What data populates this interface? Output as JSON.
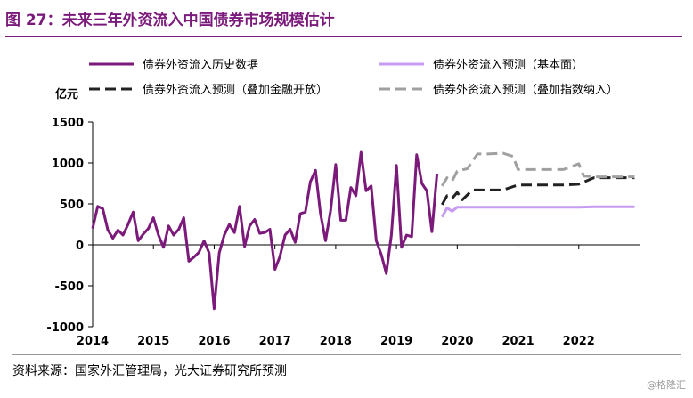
{
  "header": {
    "title": "图 27：未来三年外资流入中国债券市场规模估计"
  },
  "footer": {
    "source": "资料来源：国家外汇管理局，光大证券研究所预测",
    "watermark": "@格隆汇"
  },
  "chart_data": {
    "type": "line",
    "title": "图 27：未来三年外资流入中国债券市场规模估计",
    "ylabel": "亿元",
    "xlabel": "",
    "ylim": [
      -1000,
      1500
    ],
    "xlim": [
      2014,
      2023
    ],
    "yticks": [
      1500,
      1000,
      500,
      0,
      -500,
      -1000
    ],
    "ytick_labels": [
      "1500",
      "1000",
      "500",
      "0",
      "-500",
      "-1000"
    ],
    "xticks": [
      2014,
      2015,
      2016,
      2017,
      2018,
      2019,
      2020,
      2021,
      2022
    ],
    "xtick_labels": [
      "2014",
      "2015",
      "2016",
      "2017",
      "2018",
      "2019",
      "2020",
      "2021",
      "2022"
    ],
    "grid": false,
    "legend_position": "top",
    "series": [
      {
        "name": "债券外资流入历史数据",
        "color": "#7b1a7b",
        "style": "solid",
        "x": [
          2014.0,
          2014.083,
          2014.167,
          2014.25,
          2014.333,
          2014.417,
          2014.5,
          2014.583,
          2014.667,
          2014.75,
          2014.833,
          2014.917,
          2015.0,
          2015.083,
          2015.167,
          2015.25,
          2015.333,
          2015.417,
          2015.5,
          2015.583,
          2015.667,
          2015.75,
          2015.833,
          2015.917,
          2016.0,
          2016.083,
          2016.167,
          2016.25,
          2016.333,
          2016.417,
          2016.5,
          2016.583,
          2016.667,
          2016.75,
          2016.833,
          2016.917,
          2017.0,
          2017.083,
          2017.167,
          2017.25,
          2017.333,
          2017.417,
          2017.5,
          2017.583,
          2017.667,
          2017.75,
          2017.833,
          2017.917,
          2018.0,
          2018.083,
          2018.167,
          2018.25,
          2018.333,
          2018.417,
          2018.5,
          2018.583,
          2018.667,
          2018.75,
          2018.833,
          2018.917,
          2019.0,
          2019.083,
          2019.167,
          2019.25,
          2019.333,
          2019.417,
          2019.5,
          2019.583,
          2019.667
        ],
        "values": [
          200,
          470,
          440,
          180,
          80,
          180,
          120,
          250,
          400,
          50,
          130,
          200,
          330,
          120,
          -30,
          230,
          120,
          190,
          330,
          -200,
          -150,
          -90,
          50,
          -100,
          -780,
          -100,
          120,
          250,
          150,
          470,
          -20,
          230,
          310,
          140,
          150,
          190,
          -300,
          -140,
          120,
          190,
          30,
          380,
          400,
          770,
          910,
          380,
          50,
          420,
          980,
          300,
          300,
          700,
          600,
          1130,
          660,
          720,
          50,
          -120,
          -350,
          120,
          970,
          -30,
          120,
          100,
          1100,
          750,
          660,
          160,
          870
        ]
      },
      {
        "name": "债券外资流入预测（基本面）",
        "color": "#c79bf0",
        "style": "solid",
        "x": [
          2019.75,
          2019.833,
          2019.917,
          2020.0,
          2020.25,
          2020.5,
          2020.75,
          2021.0,
          2021.25,
          2021.5,
          2021.75,
          2022.0,
          2022.25,
          2022.5,
          2022.75,
          2022.92
        ],
        "values": [
          340,
          450,
          410,
          460,
          460,
          460,
          460,
          460,
          460,
          460,
          460,
          460,
          465,
          465,
          465,
          465
        ]
      },
      {
        "name": "债券外资流入预测（叠加金融开放）",
        "color": "#222222",
        "style": "dashed",
        "x": [
          2019.75,
          2019.833,
          2019.917,
          2020.0,
          2020.083,
          2020.25,
          2020.5,
          2020.75,
          2021.0,
          2021.25,
          2021.5,
          2021.75,
          2022.0,
          2022.25,
          2022.5,
          2022.75,
          2022.92
        ],
        "values": [
          490,
          600,
          570,
          640,
          550,
          670,
          670,
          670,
          730,
          730,
          730,
          730,
          740,
          820,
          820,
          820,
          820
        ]
      },
      {
        "name": "债券外资流入预测（叠加指数纳入）",
        "color": "#a0a0a0",
        "style": "dashed",
        "x": [
          2019.75,
          2019.833,
          2019.917,
          2020.0,
          2020.167,
          2020.333,
          2020.5,
          2020.75,
          2020.917,
          2021.0,
          2021.25,
          2021.5,
          2021.75,
          2022.0,
          2022.083,
          2022.25,
          2022.5,
          2022.75,
          2022.92
        ],
        "values": [
          720,
          820,
          780,
          900,
          930,
          1110,
          1110,
          1120,
          1080,
          920,
          920,
          920,
          920,
          990,
          840,
          830,
          830,
          830,
          830
        ]
      }
    ]
  }
}
